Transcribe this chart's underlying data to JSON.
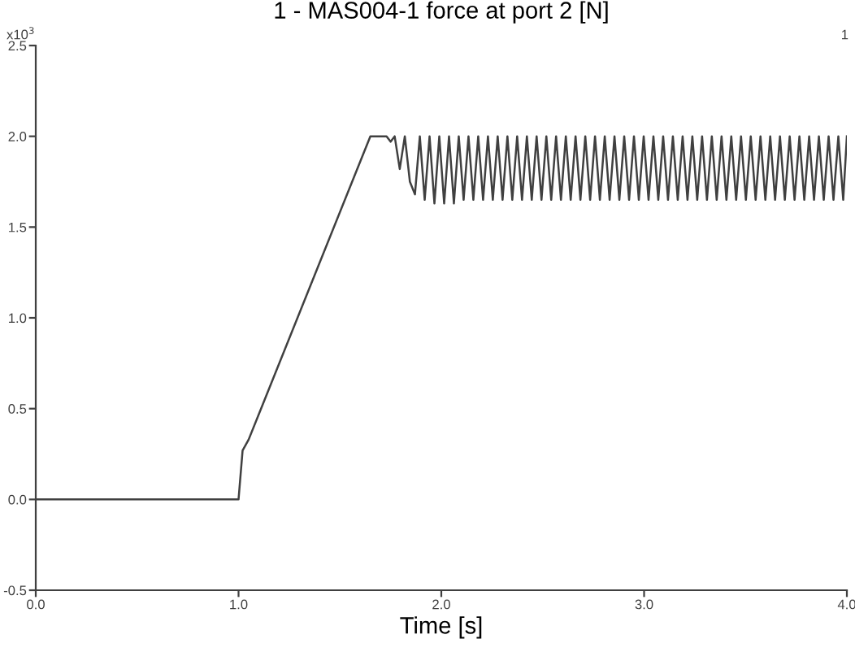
{
  "chart_data": {
    "type": "line",
    "title": "1 - MAS004-1 force at port 2 [N]",
    "xlabel": "Time [s]",
    "annotations": [
      "x10$^{3}$",
      "1"
    ],
    "xlim": [
      0,
      4
    ],
    "ylim": [
      -0.5,
      2.5
    ],
    "xticks": [
      {
        "value": 0,
        "label": "0.0"
      },
      {
        "value": 1,
        "label": "1.0"
      },
      {
        "value": 2,
        "label": "2.0"
      },
      {
        "value": 3,
        "label": "3.0"
      },
      {
        "value": 4,
        "label": "4.0"
      }
    ],
    "yticks": [
      {
        "value": -0.5,
        "label": "-0.5"
      },
      {
        "value": 0,
        "label": "0.0"
      },
      {
        "value": 0.5,
        "label": "0.5"
      },
      {
        "value": 1,
        "label": "1.0"
      },
      {
        "value": 1.5,
        "label": "1.5"
      },
      {
        "value": 2,
        "label": "2.0"
      },
      {
        "value": 2.5,
        "label": "2.5"
      }
    ],
    "grid": false,
    "legend": false,
    "line_style": "solid",
    "marker": "none",
    "series": [
      {
        "color": "#404040",
        "x": [
          0,
          1.0,
          1.02,
          1.05,
          1.65,
          1.73,
          1.75,
          1.77,
          1.795,
          1.82,
          1.845,
          1.87,
          1.894,
          1.918,
          1.942,
          1.966,
          1.99,
          2.014,
          2.038,
          2.062,
          2.086,
          2.11,
          2.134,
          2.158,
          2.182,
          2.206,
          2.23,
          2.254,
          2.278,
          2.302,
          2.326,
          2.35,
          2.374,
          2.398,
          2.422,
          2.446,
          2.47,
          2.494,
          2.518,
          2.542,
          2.566,
          2.59,
          2.614,
          2.638,
          2.662,
          2.686,
          2.71,
          2.734,
          2.758,
          2.782,
          2.806,
          2.83,
          2.854,
          2.878,
          2.902,
          2.926,
          2.95,
          2.974,
          2.998,
          3.022,
          3.046,
          3.07,
          3.094,
          3.118,
          3.142,
          3.166,
          3.19,
          3.214,
          3.238,
          3.262,
          3.286,
          3.31,
          3.334,
          3.358,
          3.382,
          3.406,
          3.43,
          3.454,
          3.478,
          3.502,
          3.526,
          3.55,
          3.574,
          3.598,
          3.622,
          3.646,
          3.67,
          3.694,
          3.718,
          3.742,
          3.766,
          3.79,
          3.814,
          3.838,
          3.862,
          3.886,
          3.91,
          3.934,
          3.958,
          3.982,
          4.0
        ],
        "values": [
          0,
          0,
          0.27,
          0.33,
          2.0,
          2.0,
          1.97,
          2.0,
          1.82,
          2.0,
          1.75,
          1.68,
          2.0,
          1.65,
          2.0,
          1.63,
          2.0,
          1.63,
          2.0,
          1.63,
          2.0,
          1.65,
          2.0,
          1.65,
          2.0,
          1.65,
          2.0,
          1.65,
          2.0,
          1.65,
          2.0,
          1.65,
          2.0,
          1.65,
          2.0,
          1.65,
          2.0,
          1.65,
          2.0,
          1.65,
          2.0,
          1.65,
          2.0,
          1.65,
          2.0,
          1.65,
          2.0,
          1.65,
          2.0,
          1.65,
          2.0,
          1.65,
          2.0,
          1.65,
          2.0,
          1.65,
          2.0,
          1.65,
          2.0,
          1.65,
          2.0,
          1.65,
          2.0,
          1.65,
          2.0,
          1.65,
          2.0,
          1.65,
          2.0,
          1.65,
          2.0,
          1.65,
          2.0,
          1.65,
          2.0,
          1.65,
          2.0,
          1.65,
          2.0,
          1.65,
          2.0,
          1.65,
          2.0,
          1.65,
          2.0,
          1.65,
          2.0,
          1.65,
          2.0,
          1.65,
          2.0,
          1.65,
          2.0,
          1.65,
          2.0,
          1.65,
          2.0,
          1.65,
          2.0,
          1.65,
          2.0
        ]
      }
    ]
  }
}
